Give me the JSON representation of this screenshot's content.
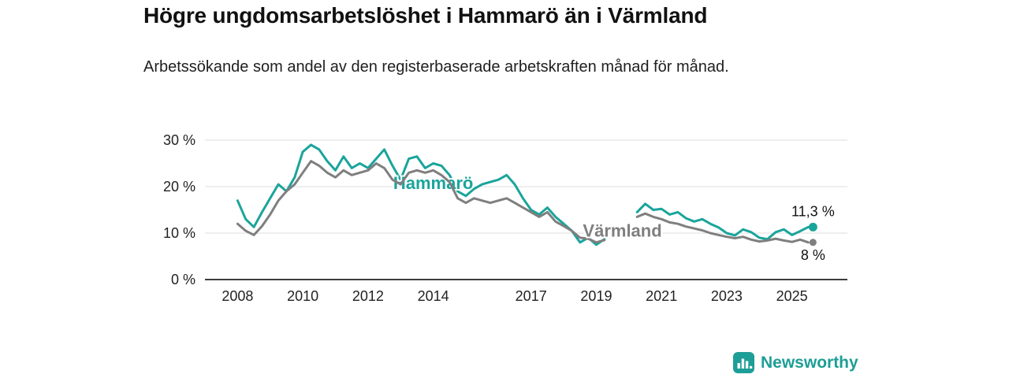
{
  "header": {
    "title": "Högre ungdomsarbetslöshet i Hammarö än i Värmland",
    "subtitle": "Arbetssökande som andel av den registerbaserade arbetskraften månad för månad."
  },
  "attribution": {
    "brand": "Newsworthy"
  },
  "colors": {
    "accent": "#1aa49b",
    "secondary": "#7f7f7f",
    "grid": "#dcdcdc",
    "axis": "#3d3d3d",
    "text": "#222222"
  },
  "chart_data": {
    "type": "line",
    "title": "Högre ungdomsarbetslöshet i Hammarö än i Värmland",
    "subtitle": "Arbetssökande som andel av den registerbaserade arbetskraften månad för månad.",
    "x_unit": "year",
    "xlim": [
      2007,
      2026.7
    ],
    "ylim": [
      0,
      30
    ],
    "y_ticks": [
      0,
      10,
      20,
      30
    ],
    "y_tick_suffix": " %",
    "x_ticks": [
      2008,
      2010,
      2012,
      2014,
      2017,
      2019,
      2021,
      2023,
      2025
    ],
    "grid": "horizontal",
    "legend": "inline-labels",
    "note": "gap in data mid-2019 to early-2020",
    "x": [
      2008,
      2008.25,
      2008.5,
      2008.75,
      2009,
      2009.25,
      2009.5,
      2009.75,
      2010,
      2010.25,
      2010.5,
      2010.75,
      2011,
      2011.25,
      2011.5,
      2011.75,
      2012,
      2012.25,
      2012.5,
      2012.75,
      2013,
      2013.25,
      2013.5,
      2013.75,
      2014,
      2014.25,
      2014.5,
      2014.75,
      2015,
      2015.25,
      2015.5,
      2015.75,
      2016,
      2016.25,
      2016.5,
      2016.75,
      2017,
      2017.25,
      2017.5,
      2017.75,
      2018,
      2018.25,
      2018.5,
      2018.75,
      2019,
      2019.25,
      2019.5,
      2019.75,
      2020,
      2020.25,
      2020.5,
      2020.75,
      2021,
      2021.25,
      2021.5,
      2021.75,
      2022,
      2022.25,
      2022.5,
      2022.75,
      2023,
      2023.25,
      2023.5,
      2023.75,
      2024,
      2024.25,
      2024.5,
      2024.75,
      2025,
      2025.25,
      2025.5
    ],
    "series": [
      {
        "name": "Hammarö",
        "color": "#1aa49b",
        "latest_value": 11.3,
        "end_label": "11,3 %",
        "end_label_side": "above",
        "label_x": 2014.0,
        "label_y": 19.5,
        "values": [
          17,
          13,
          11.3,
          14.5,
          17.5,
          20.5,
          19,
          22,
          27.5,
          29,
          28,
          25.5,
          23.5,
          26.5,
          24,
          25,
          24,
          26,
          28,
          24.5,
          21.5,
          26,
          26.5,
          24,
          25,
          24.5,
          22.5,
          19,
          18,
          19.5,
          20.5,
          21,
          21.5,
          22.5,
          20.5,
          17.5,
          15,
          14,
          15.5,
          13.5,
          12,
          10.5,
          8,
          9,
          7.5,
          8.7,
          null,
          null,
          null,
          14.5,
          16.3,
          15,
          15.2,
          14,
          14.5,
          13.2,
          12.5,
          13,
          12,
          11.2,
          10,
          9.5,
          10.8,
          10.2,
          9,
          8.7,
          10.2,
          10.8,
          9.6,
          10.4,
          11.3
        ]
      },
      {
        "name": "Värmland",
        "color": "#7f7f7f",
        "latest_value": 8,
        "end_label": "8 %",
        "end_label_side": "below",
        "label_x": 2019.8,
        "label_y": 9.2,
        "values": [
          12,
          10.5,
          9.6,
          11.5,
          14,
          17,
          19,
          20.5,
          23,
          25.5,
          24.5,
          23,
          22,
          23.5,
          22.5,
          23,
          23.5,
          25,
          24,
          21.5,
          20.5,
          23,
          23.5,
          23,
          23.5,
          22.5,
          21,
          17.5,
          16.5,
          17.5,
          17,
          16.5,
          17,
          17.5,
          16.5,
          15.5,
          14.5,
          13.5,
          14.5,
          12.5,
          11.5,
          10.5,
          9,
          8.8,
          8,
          8.5,
          null,
          null,
          null,
          13.5,
          14.2,
          13.5,
          13,
          12.3,
          12,
          11.4,
          11,
          10.6,
          10,
          9.6,
          9.2,
          8.9,
          9.2,
          8.6,
          8.2,
          8.4,
          8.8,
          8.4,
          8.1,
          8.6,
          8
        ]
      }
    ]
  }
}
